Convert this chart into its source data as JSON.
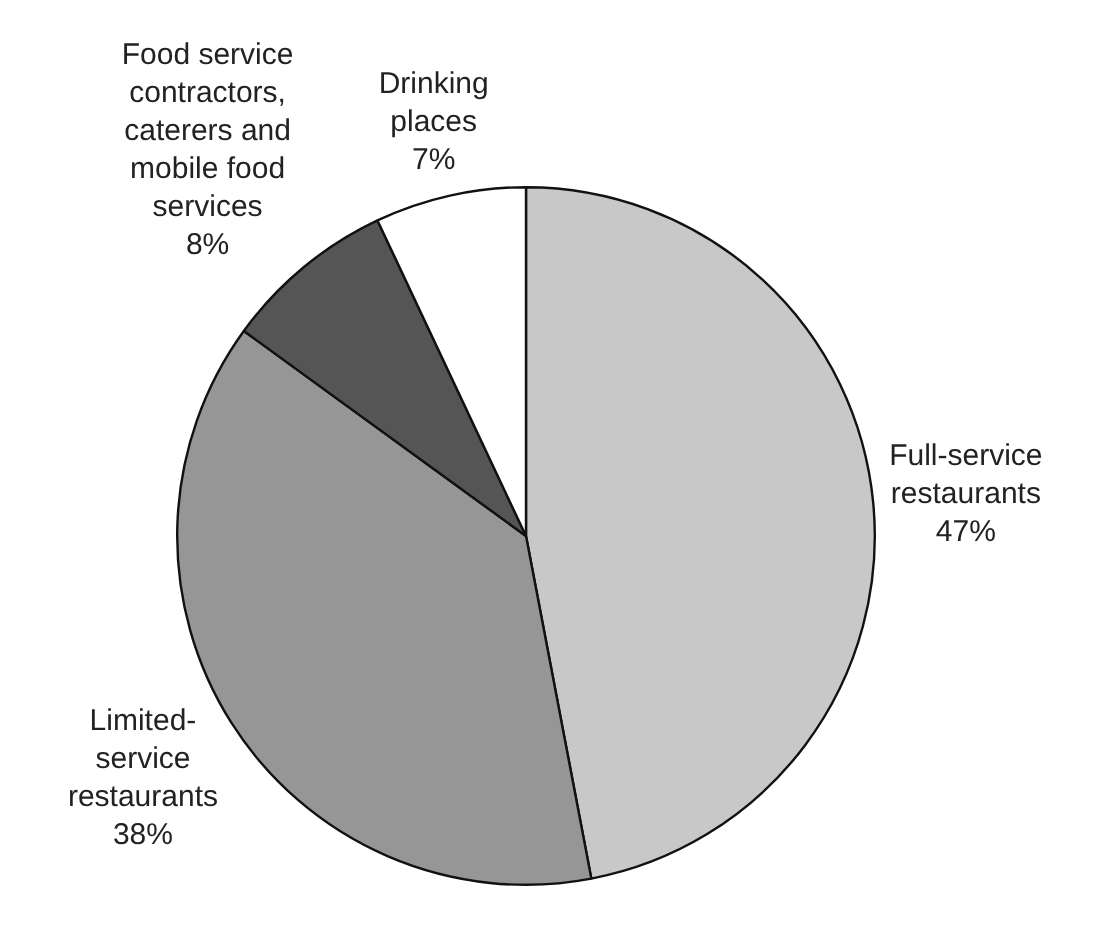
{
  "chart_data": {
    "type": "pie",
    "categories": [
      "Full-service restaurants",
      "Limited-service restaurants",
      "Food service contractors, caterers and mobile food services",
      "Drinking places"
    ],
    "values": [
      47,
      38,
      8,
      7
    ],
    "colors": [
      "#c8c8c8",
      "#969696",
      "#555555",
      "#ffffff"
    ],
    "value_labels": [
      "47%",
      "38%",
      "8%",
      "7%"
    ],
    "legend": false
  }
}
